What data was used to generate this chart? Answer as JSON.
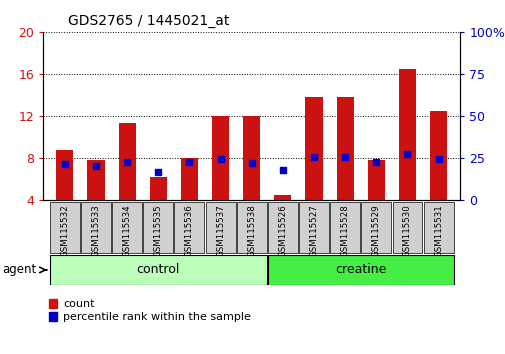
{
  "title": "GDS2765 / 1445021_at",
  "categories": [
    "GSM115532",
    "GSM115533",
    "GSM115534",
    "GSM115535",
    "GSM115536",
    "GSM115537",
    "GSM115538",
    "GSM115526",
    "GSM115527",
    "GSM115528",
    "GSM115529",
    "GSM115530",
    "GSM115531"
  ],
  "counts": [
    8.8,
    7.8,
    11.3,
    6.2,
    8.0,
    12.0,
    12.0,
    4.5,
    13.8,
    13.8,
    7.8,
    16.5,
    12.5
  ],
  "percentiles": [
    7.4,
    7.2,
    7.6,
    6.7,
    7.6,
    7.9,
    7.5,
    6.9,
    8.1,
    8.1,
    7.6,
    8.4,
    7.9
  ],
  "bar_color": "#cc1111",
  "marker_color": "#0000cc",
  "ylim_left": [
    4,
    20
  ],
  "ylim_right": [
    0,
    100
  ],
  "yticks_left": [
    4,
    8,
    12,
    16,
    20
  ],
  "yticks_right": [
    0,
    25,
    50,
    75,
    100
  ],
  "ytick_labels_right": [
    "0",
    "25",
    "50",
    "75",
    "100%"
  ],
  "control_color": "#bbffbb",
  "creatine_color": "#44ee44",
  "agent_label": "agent",
  "control_label": "control",
  "creatine_label": "creatine",
  "legend_count_label": "count",
  "legend_percentile_label": "percentile rank within the sample",
  "tick_color_left": "#cc1111",
  "tick_color_right": "#0000cc",
  "n_control": 7,
  "n_creatine": 6
}
